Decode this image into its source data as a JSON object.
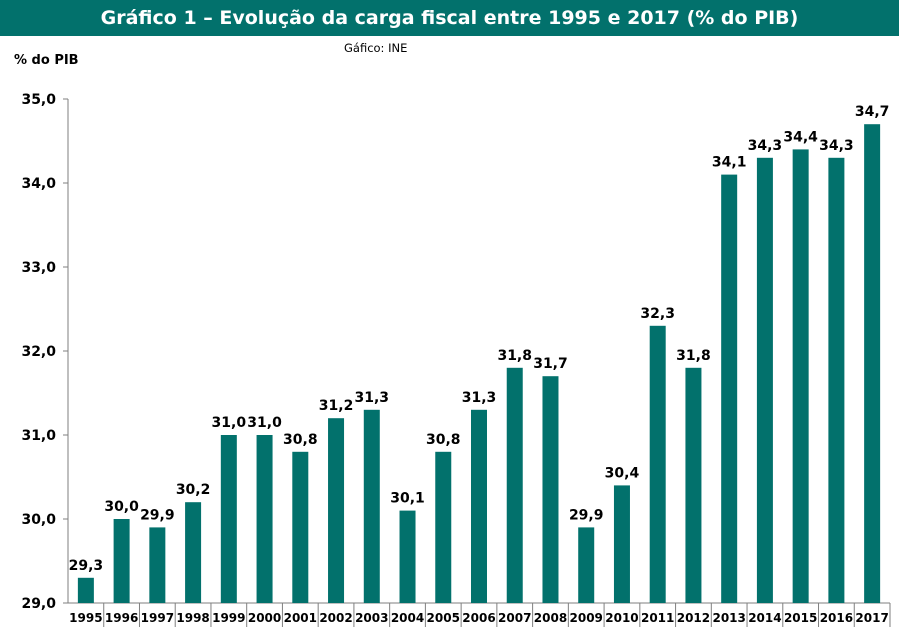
{
  "chart_data": {
    "type": "bar",
    "title": "Gráfico 1 – Evolução da carga fiscal entre 1995 e 2017 (% do PIB)",
    "source": "Gáfico: INE",
    "ylabel": "% do PIB",
    "xlabel": "",
    "ylim": [
      29.0,
      35.0
    ],
    "yticks": [
      "29,0",
      "30,0",
      "31,0",
      "32,0",
      "33,0",
      "34,0",
      "35,0"
    ],
    "categories": [
      "1995",
      "1996",
      "1997",
      "1998",
      "1999",
      "2000",
      "2001",
      "2002",
      "2003",
      "2004",
      "2005",
      "2006",
      "2007",
      "2008",
      "2009",
      "2010",
      "2011",
      "2012",
      "2013",
      "2014",
      "2015",
      "2016",
      "2017"
    ],
    "values": [
      29.3,
      30.0,
      29.9,
      30.2,
      31.0,
      31.0,
      30.8,
      31.2,
      31.3,
      30.1,
      30.8,
      31.3,
      31.8,
      31.7,
      29.9,
      30.4,
      32.3,
      31.8,
      34.1,
      34.3,
      34.4,
      34.3,
      34.7
    ],
    "value_labels": [
      "29,3",
      "30,0",
      "29,9",
      "30,2",
      "31,0",
      "31,0",
      "30,8",
      "31,2",
      "31,3",
      "30,1",
      "30,8",
      "31,3",
      "31,8",
      "31,7",
      "29,9",
      "30,4",
      "32,3",
      "31,8",
      "34,1",
      "34,3",
      "34,4",
      "34,3",
      "34,7"
    ],
    "bar_color": "#02716c",
    "grid": false,
    "legend": "none"
  }
}
